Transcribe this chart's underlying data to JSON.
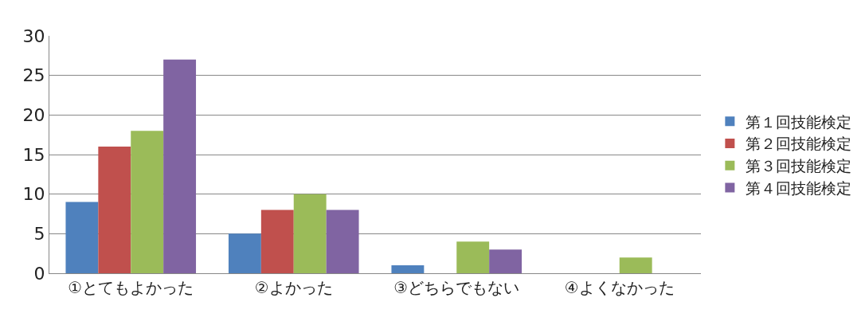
{
  "chart_data": {
    "type": "bar",
    "categories": [
      "①とてもよかった",
      "②よかった",
      "③どちらでもない",
      "④よくなかった"
    ],
    "series": [
      {
        "name": "第１回技能検定",
        "color": "#4f81bd",
        "values": [
          9,
          5,
          1,
          0
        ]
      },
      {
        "name": "第２回技能検定",
        "color": "#c0504d",
        "values": [
          16,
          8,
          0,
          0
        ]
      },
      {
        "name": "第３回技能検定",
        "color": "#9bbb59",
        "values": [
          18,
          10,
          4,
          2
        ]
      },
      {
        "name": "第４回技能検定",
        "color": "#8064a2",
        "values": [
          27,
          8,
          3,
          0
        ]
      }
    ],
    "ylim": [
      0,
      30
    ],
    "yticks": [
      0,
      5,
      10,
      15,
      20,
      25,
      30
    ],
    "grid": "y",
    "legend": "right"
  }
}
